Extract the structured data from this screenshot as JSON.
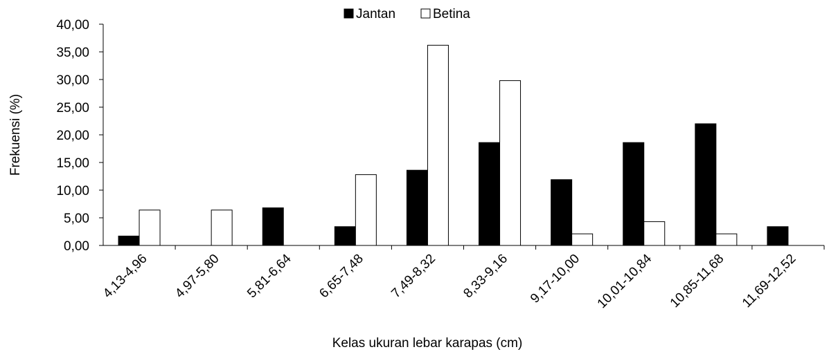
{
  "chart_data": {
    "type": "bar",
    "title": "",
    "xlabel": "Kelas ukuran lebar karapas (cm)",
    "ylabel": "Frekuensi  (%)",
    "ylim": [
      0,
      40
    ],
    "yticks": [
      "0,00",
      "5,00",
      "10,00",
      "15,00",
      "20,00",
      "25,00",
      "30,00",
      "35,00",
      "40,00"
    ],
    "categories": [
      "4,13-4,96",
      "4,97-5,80",
      "5,81-6,64",
      "6,65-7,48",
      "7,49-8,32",
      "8,33-9,16",
      "9,17-10,00",
      "10,01-10,84",
      "10,85-11,68",
      "11,69-12,52"
    ],
    "series": [
      {
        "name": "Jantan",
        "color": "#000000",
        "values": [
          1.7,
          0,
          6.8,
          3.4,
          13.6,
          18.6,
          11.9,
          18.6,
          22.0,
          3.4
        ]
      },
      {
        "name": "Betina",
        "color": "#ffffff",
        "values": [
          6.4,
          6.4,
          0,
          12.8,
          36.2,
          29.8,
          2.1,
          4.3,
          2.1,
          0
        ]
      }
    ],
    "legend_position": "top-center",
    "grid": false
  }
}
